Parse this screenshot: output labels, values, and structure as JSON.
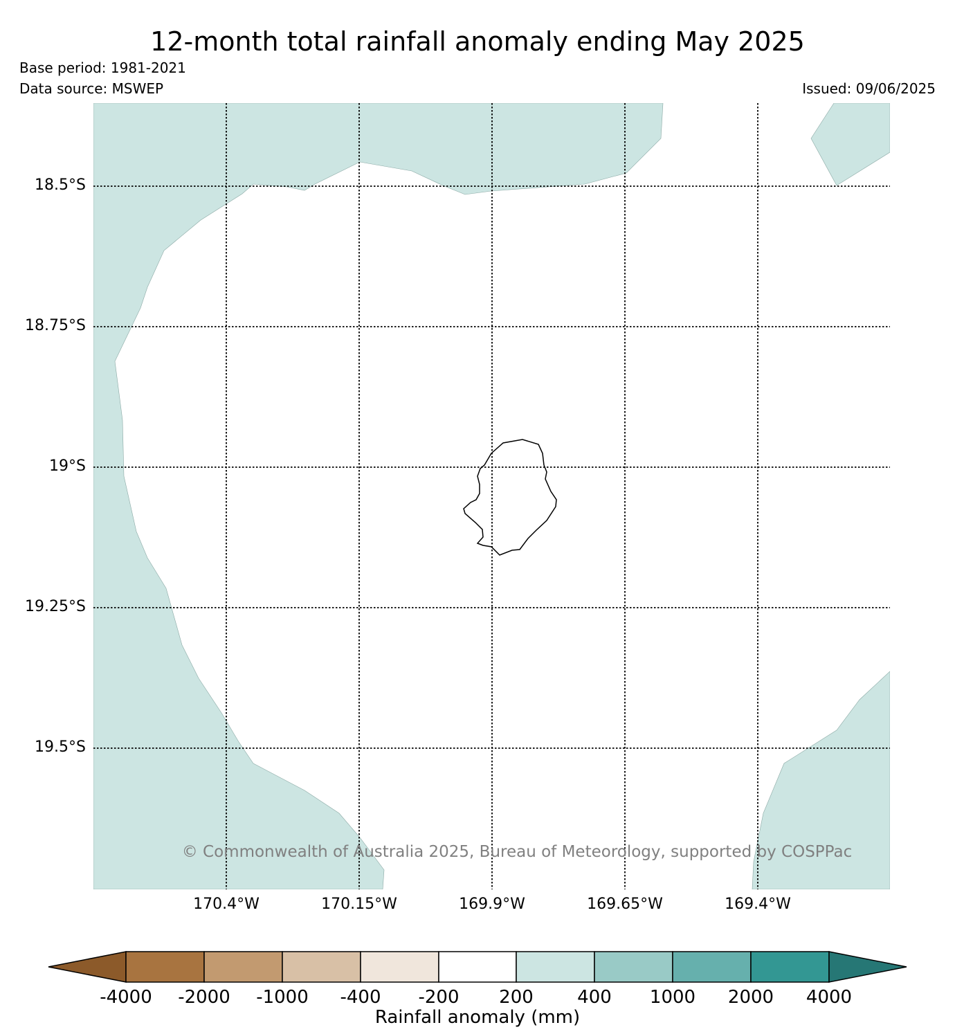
{
  "header": {
    "title": "12-month total rainfall anomaly ending May 2025",
    "base_period": "Base period: 1981-2021",
    "data_source": "Data source: MSWEP",
    "issued": "Issued: 09/06/2025"
  },
  "map": {
    "lat_labels": [
      "18.5°S",
      "18.75°S",
      "19°S",
      "19.25°S",
      "19.5°S"
    ],
    "lon_labels": [
      "170.4°W",
      "170.15°W",
      "169.9°W",
      "169.65°W",
      "169.4°W"
    ],
    "copyright": "© Commonwealth of Australia 2025, Bureau of Meteorology, supported by COSPPac",
    "island": "Niue",
    "shaded_category_color": "#cce5e2"
  },
  "colorbar": {
    "label": "Rainfall anomaly (mm)",
    "ticks": [
      "-4000",
      "-2000",
      "-1000",
      "-400",
      "-200",
      "200",
      "400",
      "1000",
      "2000",
      "4000"
    ],
    "colors": [
      "#8c5a2a",
      "#a87440",
      "#c29a70",
      "#d8c0a6",
      "#f0e6dc",
      "#ffffff",
      "#cce5e2",
      "#99cac6",
      "#66b0ad",
      "#339793",
      "#267775"
    ]
  }
}
